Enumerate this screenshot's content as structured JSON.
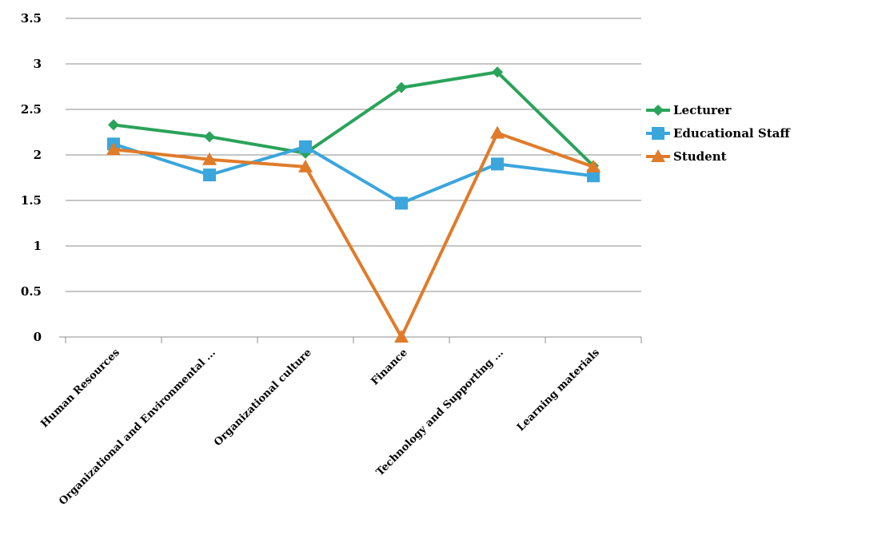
{
  "chart_data": {
    "type": "line",
    "categories": [
      "Human Resources",
      "Organizational and Environmental ...",
      "Organizational culture",
      "Finance",
      "Technology and Supporting ...",
      "Learning materials"
    ],
    "series": [
      {
        "name": "Lecturer",
        "values": [
          2.33,
          2.2,
          2.02,
          2.74,
          2.91,
          1.88
        ],
        "color": "#2aa35a",
        "marker": "diamond"
      },
      {
        "name": "Educational Staff",
        "values": [
          2.12,
          1.78,
          2.09,
          1.47,
          1.9,
          1.77
        ],
        "color": "#3aa6dc",
        "marker": "square"
      },
      {
        "name": "Student",
        "values": [
          2.06,
          1.95,
          1.87,
          0.0,
          2.24,
          1.87
        ],
        "color": "#e07b2a",
        "marker": "triangle"
      }
    ],
    "yticks": [
      "0",
      "0.5",
      "1",
      "1.5",
      "2",
      "2.5",
      "3",
      "3.5"
    ],
    "ylim": [
      0,
      3.5
    ],
    "grid": true,
    "legend_position": "right"
  }
}
